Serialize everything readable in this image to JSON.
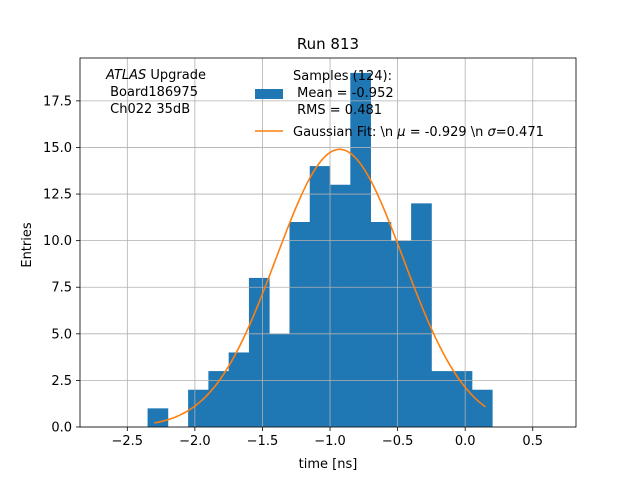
{
  "chart_data": {
    "type": "bar",
    "title": "Run 813",
    "xlabel": "time [ns]",
    "ylabel": "Entries",
    "xlim": [
      -2.85,
      0.82
    ],
    "ylim": [
      0,
      19.8
    ],
    "xticks": [
      -2.5,
      -2.0,
      -1.5,
      -1.0,
      -0.5,
      0.0,
      0.5
    ],
    "xtick_labels": [
      "−2.5",
      "−2.0",
      "−1.5",
      "−1.0",
      "−0.5",
      "0.0",
      "0.5"
    ],
    "yticks": [
      0.0,
      2.5,
      5.0,
      7.5,
      10.0,
      12.5,
      15.0,
      17.5
    ],
    "ytick_labels": [
      "0.0",
      "2.5",
      "5.0",
      "7.5",
      "10.0",
      "12.5",
      "15.0",
      "17.5"
    ],
    "grid": true,
    "histogram": {
      "bin_edges": [
        -2.35,
        -2.2,
        -2.05,
        -1.9,
        -1.75,
        -1.6,
        -1.45,
        -1.3,
        -1.15,
        -1.0,
        -0.85,
        -0.7,
        -0.55,
        -0.4,
        -0.25,
        -0.1,
        0.05,
        0.2
      ],
      "counts": [
        1,
        0,
        2,
        3,
        4,
        8,
        5,
        11,
        14,
        13,
        19,
        11,
        10,
        12,
        3,
        3,
        2
      ],
      "color": "#1f77b4",
      "label_lines": [
        "Samples (124):",
        " Mean = -0.952",
        " RMS = 0.481"
      ]
    },
    "fit": {
      "type": "gaussian",
      "amplitude": 14.9,
      "mean": -0.929,
      "sigma": 0.471,
      "x_range": [
        -2.3,
        0.15
      ],
      "color": "#ff7f0e",
      "label": "Gaussian Fit: \\n $\\mu$ = -0.929 \\n $\\sigma$=0.471"
    },
    "legend_position": "top-center",
    "annotation": {
      "lines": [
        "ATLAS Upgrade",
        " Board186975",
        " Ch022 35dB"
      ],
      "italic_word": "ATLAS",
      "position": "top-left"
    }
  }
}
